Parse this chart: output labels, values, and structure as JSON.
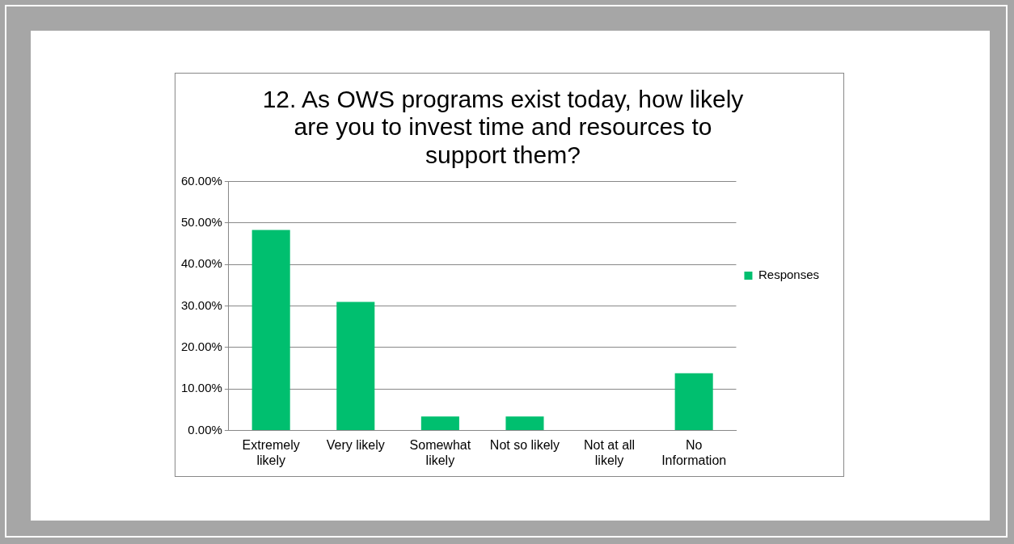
{
  "chart_data": {
    "type": "bar",
    "title": "12. As OWS programs exist today, how likely are you to invest time and resources to support them?",
    "categories": [
      "Extremely likely",
      "Very likely",
      "Somewhat likely",
      "Not so likely",
      "Not at all likely",
      "No Information"
    ],
    "series": [
      {
        "name": "Responses",
        "color": "#00bf6f",
        "values": [
          48.3,
          31.0,
          3.4,
          3.4,
          0,
          13.8
        ]
      }
    ],
    "ylim": [
      0,
      60
    ],
    "yticks": [
      {
        "value": 0,
        "label": "0.00%"
      },
      {
        "value": 10,
        "label": "10.00%"
      },
      {
        "value": 20,
        "label": "20.00%"
      },
      {
        "value": 30,
        "label": "30.00%"
      },
      {
        "value": 40,
        "label": "40.00%"
      },
      {
        "value": 50,
        "label": "50.00%"
      },
      {
        "value": 60,
        "label": "60.00%"
      }
    ],
    "grid": "y",
    "legend": "right"
  }
}
